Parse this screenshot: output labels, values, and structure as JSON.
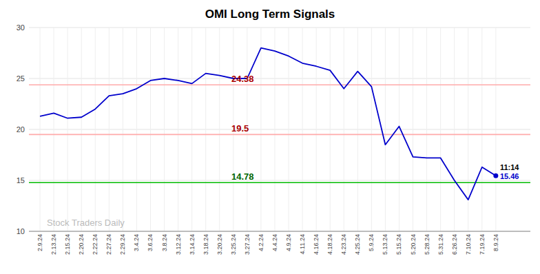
{
  "chart_data": {
    "type": "line",
    "title": "OMI Long Term Signals",
    "categories": [
      "2.9.24",
      "2.13.24",
      "2.15.24",
      "2.20.24",
      "2.22.24",
      "2.27.24",
      "2.29.24",
      "3.4.24",
      "3.6.24",
      "3.8.24",
      "3.12.24",
      "3.14.24",
      "3.18.24",
      "3.20.24",
      "3.25.24",
      "3.27.24",
      "4.2.24",
      "4.4.24",
      "4.9.24",
      "4.11.24",
      "4.16.24",
      "4.18.24",
      "4.23.24",
      "4.25.24",
      "5.9.24",
      "5.13.24",
      "5.15.24",
      "5.20.24",
      "5.28.24",
      "5.31.24",
      "6.26.24",
      "7.10.24",
      "7.19.24",
      "8.9.24"
    ],
    "values": [
      21.3,
      21.6,
      21.1,
      21.2,
      22.0,
      23.3,
      23.5,
      24.0,
      24.8,
      25.0,
      24.8,
      24.5,
      25.5,
      25.3,
      25.0,
      25.0,
      28.0,
      27.7,
      27.2,
      26.5,
      26.2,
      25.8,
      24.0,
      25.7,
      24.2,
      18.5,
      20.3,
      17.3,
      17.2,
      17.2,
      15.0,
      13.1,
      16.3,
      15.46
    ],
    "color": "#0000cc",
    "ylim": [
      10,
      30
    ],
    "yticks": [
      10,
      15,
      20,
      25,
      30
    ],
    "grid": true,
    "reference_lines": [
      {
        "value": 24.38,
        "label": "24.38",
        "color": "#ffaaaa",
        "label_color": "#aa0000"
      },
      {
        "value": 19.5,
        "label": "19.5",
        "color": "#ffaaaa",
        "label_color": "#aa0000"
      },
      {
        "value": 14.78,
        "label": "14.78",
        "color": "#00bb00",
        "label_color": "#006600"
      }
    ],
    "annotations": [
      {
        "text": "11:14",
        "color": "#000000"
      },
      {
        "text": "15.46",
        "color": "#0000cc"
      }
    ],
    "watermark": "Stock Traders Daily"
  }
}
